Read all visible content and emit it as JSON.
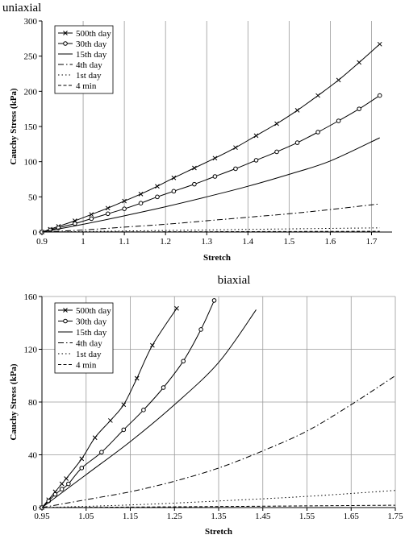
{
  "chart_data": [
    {
      "type": "line",
      "title": "uniaxial",
      "xlabel": "Stretch",
      "ylabel": "Cauchy Stress (kPa)",
      "xlim": [
        0.9,
        1.75
      ],
      "ylim": [
        0,
        300
      ],
      "xticks": [
        0.9,
        1.0,
        1.1,
        1.2,
        1.3,
        1.4,
        1.5,
        1.6,
        1.7
      ],
      "xtick_labels": [
        "0.9",
        "1",
        "1.1",
        "1.2",
        "1.3",
        "1.4",
        "1.5",
        "1.6",
        "1.7"
      ],
      "yticks": [
        0,
        50,
        100,
        150,
        200,
        250,
        300
      ],
      "ytick_labels": [
        "0",
        "50",
        "100",
        "150",
        "200",
        "250",
        "300"
      ],
      "grid": "vertical",
      "legend": "top-left",
      "series": [
        {
          "name": "500th day",
          "marker": "x",
          "dash": "solid",
          "x": [
            0.9,
            0.92,
            0.94,
            0.98,
            1.02,
            1.06,
            1.1,
            1.14,
            1.18,
            1.22,
            1.27,
            1.32,
            1.37,
            1.42,
            1.47,
            1.52,
            1.57,
            1.62,
            1.67,
            1.72
          ],
          "y": [
            0,
            4,
            8,
            16,
            25,
            34,
            44,
            54,
            65,
            77,
            91,
            105,
            120,
            137,
            154,
            173,
            194,
            216,
            241,
            267
          ]
        },
        {
          "name": "30th day",
          "marker": "o",
          "dash": "solid",
          "x": [
            0.9,
            0.92,
            0.94,
            0.98,
            1.02,
            1.06,
            1.1,
            1.14,
            1.18,
            1.22,
            1.27,
            1.32,
            1.37,
            1.42,
            1.47,
            1.52,
            1.57,
            1.62,
            1.67,
            1.72
          ],
          "y": [
            0,
            3,
            6,
            12,
            19,
            26,
            33,
            41,
            50,
            58,
            68,
            79,
            90,
            102,
            114,
            127,
            142,
            158,
            175,
            194
          ]
        },
        {
          "name": "15th day",
          "marker": "none",
          "dash": "solid",
          "x": [
            0.9,
            1.0,
            1.1,
            1.2,
            1.3,
            1.4,
            1.5,
            1.6,
            1.72
          ],
          "y": [
            0,
            11,
            23,
            36,
            50,
            65,
            82,
            101,
            134
          ]
        },
        {
          "name": "4th day",
          "marker": "none",
          "dash": "dashdot",
          "x": [
            0.9,
            1.0,
            1.1,
            1.2,
            1.3,
            1.4,
            1.5,
            1.6,
            1.72
          ],
          "y": [
            0,
            3,
            7,
            11,
            16,
            21,
            26,
            32,
            40
          ]
        },
        {
          "name": "1st day",
          "marker": "none",
          "dash": "dot",
          "x": [
            0.9,
            1.1,
            1.3,
            1.5,
            1.72
          ],
          "y": [
            0,
            1.5,
            3,
            4.5,
            6
          ]
        },
        {
          "name": "4 min",
          "marker": "none",
          "dash": "dash",
          "x": [
            0.9,
            1.3,
            1.72
          ],
          "y": [
            0,
            0.5,
            1
          ]
        }
      ]
    },
    {
      "type": "line",
      "title": "biaxial",
      "xlabel": "Stretch",
      "ylabel": "Cauchy Stress (kPa)",
      "xlim": [
        0.95,
        1.75
      ],
      "ylim": [
        0,
        160
      ],
      "xticks": [
        0.95,
        1.05,
        1.15,
        1.25,
        1.35,
        1.45,
        1.55,
        1.65,
        1.75
      ],
      "xtick_labels": [
        "0.95",
        "1.05",
        "1.15",
        "1.25",
        "1.35",
        "1.45",
        "1.55",
        "1.65",
        "1.75"
      ],
      "yticks": [
        0,
        40,
        80,
        120,
        160
      ],
      "ytick_labels": [
        "0",
        "40",
        "80",
        "120",
        "160"
      ],
      "grid": "both",
      "legend": "top-left",
      "series": [
        {
          "name": "500th day",
          "marker": "x",
          "dash": "solid",
          "x": [
            0.95,
            0.965,
            0.98,
            0.995,
            1.005,
            1.04,
            1.07,
            1.105,
            1.135,
            1.165,
            1.2,
            1.255
          ],
          "y": [
            0,
            6,
            12,
            18,
            22,
            37,
            53,
            66,
            78,
            98,
            123,
            151
          ]
        },
        {
          "name": "30th day",
          "marker": "o",
          "dash": "solid",
          "x": [
            0.95,
            0.965,
            0.98,
            0.995,
            1.01,
            1.04,
            1.085,
            1.135,
            1.18,
            1.225,
            1.27,
            1.31,
            1.34
          ],
          "y": [
            0,
            5,
            10,
            14,
            18,
            30,
            42,
            59,
            74,
            91,
            111,
            135,
            157
          ]
        },
        {
          "name": "15th day",
          "marker": "none",
          "dash": "solid",
          "x": [
            0.95,
            1.05,
            1.15,
            1.25,
            1.35,
            1.435
          ],
          "y": [
            0,
            25,
            50,
            78,
            110,
            150
          ]
        },
        {
          "name": "4th day",
          "marker": "none",
          "dash": "dashdot",
          "x": [
            0.95,
            1.05,
            1.15,
            1.25,
            1.35,
            1.45,
            1.55,
            1.65,
            1.75
          ],
          "y": [
            0,
            6,
            12,
            20,
            30,
            43,
            58,
            78,
            100
          ]
        },
        {
          "name": "1st day",
          "marker": "none",
          "dash": "dot",
          "x": [
            0.95,
            1.15,
            1.35,
            1.55,
            1.75
          ],
          "y": [
            0,
            2,
            5,
            8.5,
            13
          ]
        },
        {
          "name": "4 min",
          "marker": "none",
          "dash": "dash",
          "x": [
            0.95,
            1.35,
            1.75
          ],
          "y": [
            0,
            0.8,
            1.8
          ]
        }
      ]
    }
  ]
}
